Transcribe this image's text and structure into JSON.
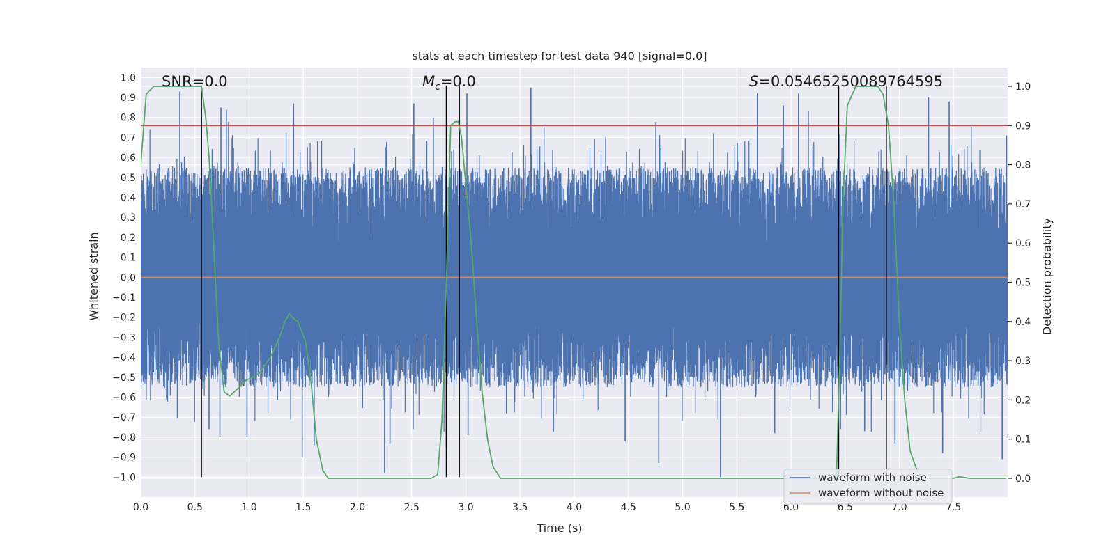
{
  "chart_data": {
    "type": "line",
    "title": "stats at each timestep for test data 940 [signal=0.0]",
    "xlabel": "Time (s)",
    "ylabel": "Whitened strain",
    "y2label": "Detection probability",
    "xlim": [
      0.0,
      8.0
    ],
    "ylim": [
      -1.1,
      1.05
    ],
    "y2lim": [
      -0.048,
      1.048
    ],
    "xticks": [
      "0.0",
      "0.5",
      "1.0",
      "1.5",
      "2.0",
      "2.5",
      "3.0",
      "3.5",
      "4.0",
      "4.5",
      "5.0",
      "5.5",
      "6.0",
      "6.5",
      "7.0",
      "7.5"
    ],
    "yticks": [
      "1.0",
      "0.9",
      "0.8",
      "0.7",
      "0.6",
      "0.5",
      "0.4",
      "0.3",
      "0.2",
      "0.1",
      "0.0",
      "-0.1",
      "-0.2",
      "-0.3",
      "-0.4",
      "-0.5",
      "-0.6",
      "-0.7",
      "-0.8",
      "-0.9",
      "-1.0"
    ],
    "y2ticks": [
      "1.0",
      "0.9",
      "0.8",
      "0.7",
      "0.6",
      "0.5",
      "0.4",
      "0.3",
      "0.2",
      "0.1",
      "0.0"
    ],
    "grid": true,
    "legend_placement": "lower-right",
    "annotations": {
      "snr": "SNR=0.0",
      "mc_symbol": "M",
      "mc_sub": "c",
      "mc_value": "=0.0",
      "s_symbol": "S",
      "s_value": "=0.05465250089764595"
    },
    "series": [
      {
        "name": "waveform with noise",
        "color": "#4c72b0",
        "kind": "noise",
        "envelope_upper": 0.55,
        "envelope_lower": -0.55,
        "peaks_upper": [
          [
            0.36,
            0.93
          ],
          [
            0.56,
            0.85
          ],
          [
            0.74,
            0.85
          ],
          [
            0.79,
            0.84
          ],
          [
            1.41,
            0.87
          ],
          [
            2.52,
            0.87
          ],
          [
            2.7,
            0.8
          ],
          [
            3.01,
            0.92
          ],
          [
            3.6,
            0.95
          ],
          [
            5.69,
            0.92
          ],
          [
            5.93,
            0.86
          ],
          [
            6.07,
            0.92
          ],
          [
            6.16,
            0.83
          ],
          [
            7.27,
            0.9
          ],
          [
            7.46,
            0.88
          ],
          [
            7.99,
            0.71
          ]
        ],
        "peaks_lower": [
          [
            0.63,
            -0.76
          ],
          [
            0.73,
            -0.8
          ],
          [
            0.98,
            -0.8
          ],
          [
            1.49,
            -0.9
          ],
          [
            1.6,
            -0.84
          ],
          [
            2.25,
            -0.98
          ],
          [
            2.3,
            -0.83
          ],
          [
            2.82,
            -0.85
          ],
          [
            3.02,
            -0.79
          ],
          [
            4.47,
            -0.82
          ],
          [
            4.78,
            -0.93
          ],
          [
            5.35,
            -1.0
          ],
          [
            5.85,
            -0.78
          ],
          [
            6.68,
            -0.77
          ],
          [
            6.96,
            -0.83
          ],
          [
            7.4,
            -0.88
          ],
          [
            7.95,
            -0.91
          ]
        ]
      },
      {
        "name": "waveform without noise",
        "color": "#dd8452",
        "x": [
          0.0,
          8.0
        ],
        "values": [
          0.0,
          0.0
        ]
      },
      {
        "name": "",
        "axis": "right",
        "color": "#55a868",
        "x": [
          0.0,
          0.05,
          0.12,
          0.2,
          0.3,
          0.4,
          0.5,
          0.56,
          0.6,
          0.63,
          0.67,
          0.72,
          0.77,
          0.82,
          0.9,
          0.97,
          1.05,
          1.1,
          1.2,
          1.28,
          1.33,
          1.37,
          1.4,
          1.45,
          1.52,
          1.57,
          1.62,
          1.68,
          1.73,
          1.8,
          2.0,
          2.5,
          2.68,
          2.74,
          2.78,
          2.82,
          2.86,
          2.9,
          2.93,
          2.96,
          3.0,
          3.05,
          3.1,
          3.15,
          3.2,
          3.25,
          3.32,
          3.4,
          4.0,
          5.0,
          6.0,
          6.42,
          6.45,
          6.48,
          6.52,
          6.55,
          6.6,
          6.7,
          6.8,
          6.85,
          6.9,
          6.95,
          7.0,
          7.05,
          7.1,
          7.15,
          7.2,
          7.3,
          7.4,
          7.5,
          7.55,
          7.65,
          7.99
        ],
        "values": [
          0.8,
          0.98,
          1.0,
          1.0,
          1.0,
          1.0,
          1.0,
          1.0,
          0.92,
          0.82,
          0.61,
          0.34,
          0.22,
          0.21,
          0.23,
          0.25,
          0.26,
          0.27,
          0.31,
          0.36,
          0.4,
          0.42,
          0.41,
          0.4,
          0.35,
          0.25,
          0.1,
          0.02,
          0.0,
          0.0,
          0.0,
          0.0,
          0.0,
          0.01,
          0.15,
          0.5,
          0.9,
          0.91,
          0.91,
          0.87,
          0.75,
          0.6,
          0.4,
          0.22,
          0.1,
          0.03,
          0.0,
          0.0,
          0.0,
          0.0,
          0.0,
          0.0,
          0.3,
          0.7,
          0.95,
          0.97,
          1.0,
          1.0,
          1.0,
          0.98,
          0.9,
          0.7,
          0.4,
          0.2,
          0.07,
          0.03,
          0.0,
          0.0,
          0.0,
          0.0,
          0.004,
          0.0,
          0.0
        ]
      }
    ],
    "threshold": {
      "axis": "right",
      "value": 0.9,
      "color": "#c44e52"
    },
    "vlines": [
      0.56,
      2.82,
      2.94,
      6.44,
      6.88
    ]
  }
}
